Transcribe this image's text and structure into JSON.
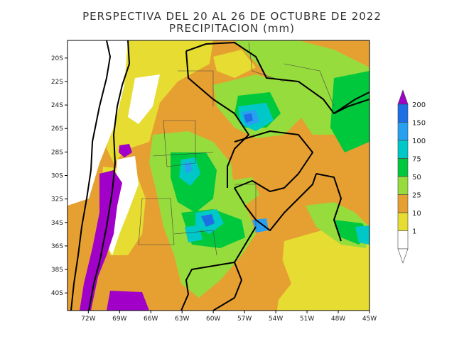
{
  "title": {
    "line1": "PERSPECTIVA DEL 20 AL 26 DE OCTUBRE DE 2022",
    "line2": "PRECIPITACION (mm)"
  },
  "map": {
    "region": "South America — Argentina, Chile, Uruguay, Paraguay, southern Brazil",
    "lat_range_deg": [
      -41.5,
      -18.5
    ],
    "lon_range_deg": [
      -74,
      -45
    ],
    "lat_ticks": [
      {
        "value": -20,
        "label": "20S"
      },
      {
        "value": -22,
        "label": "22S"
      },
      {
        "value": -24,
        "label": "24S"
      },
      {
        "value": -26,
        "label": "26S"
      },
      {
        "value": -28,
        "label": "28S"
      },
      {
        "value": -30,
        "label": "30S"
      },
      {
        "value": -32,
        "label": "32S"
      },
      {
        "value": -34,
        "label": "34S"
      },
      {
        "value": -36,
        "label": "36S"
      },
      {
        "value": -38,
        "label": "38S"
      },
      {
        "value": -40,
        "label": "40S"
      }
    ],
    "lon_ticks": [
      {
        "value": -72,
        "label": "72W"
      },
      {
        "value": -69,
        "label": "69W"
      },
      {
        "value": -66,
        "label": "66W"
      },
      {
        "value": -63,
        "label": "63W"
      },
      {
        "value": -60,
        "label": "60W"
      },
      {
        "value": -57,
        "label": "57W"
      },
      {
        "value": -54,
        "label": "54W"
      },
      {
        "value": -51,
        "label": "51W"
      },
      {
        "value": -48,
        "label": "48W"
      },
      {
        "value": -45,
        "label": "45W"
      }
    ]
  },
  "legend": {
    "levels": [
      {
        "value": "200",
        "color": "#a000c8"
      },
      {
        "value": "150",
        "color": "#1e6ee6"
      },
      {
        "value": "100",
        "color": "#28a0f0"
      },
      {
        "value": "75",
        "color": "#00c8c8"
      },
      {
        "value": "50",
        "color": "#00c83c"
      },
      {
        "value": "25",
        "color": "#96dc3c"
      },
      {
        "value": "10",
        "color": "#e6a032"
      },
      {
        "value": "1",
        "color": "#e6dc32"
      }
    ],
    "below_min_color": "#ffffff",
    "above_max_color": "#a000c8"
  },
  "colors": {
    "yellow_1_10": "#e6dc32",
    "orange_10_25": "#e6a032",
    "lightgreen_25_50": "#96dc3c",
    "green_50_75": "#00c83c",
    "cyan_75_100": "#00c8c8",
    "lightblue_100_150": "#28a0f0",
    "blue_150_200": "#1e6ee6",
    "purple_200_plus": "#a000c8"
  }
}
